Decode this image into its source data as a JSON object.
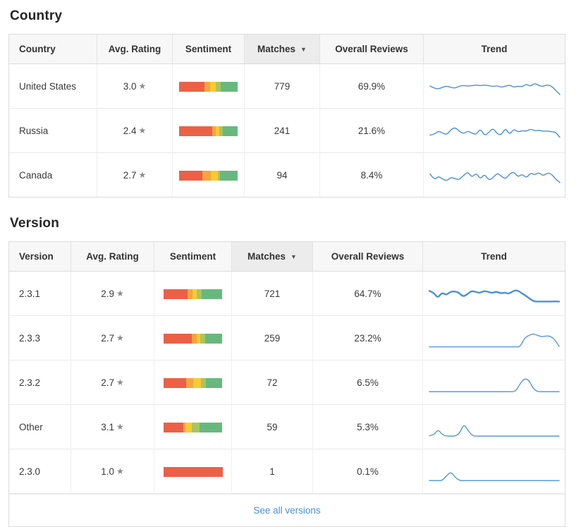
{
  "colors": {
    "sentiment_palette": [
      "#EB6146",
      "#F4A63B",
      "#F8CA33",
      "#A5C663",
      "#68B87E"
    ],
    "trend_line": "#4A90D9",
    "link": "#4A90D9",
    "header_bg": "#F7F7F7",
    "sorted_header_bg": "#ECECEC"
  },
  "country": {
    "title": "Country",
    "columns": [
      "Country",
      "Avg. Rating",
      "Sentiment",
      "Matches",
      "Overall Reviews",
      "Trend"
    ],
    "sorted_column": "Matches",
    "sort_direction": "desc",
    "sort_arrow_glyph": "▼",
    "star_glyph": "★",
    "rows": [
      {
        "name": "United States",
        "rating": "3.0",
        "sentiment": [
          44,
          9,
          10,
          8,
          29
        ],
        "matches": "779",
        "overall": "69.9%",
        "trend_weight": 1.4,
        "trend": [
          50,
          40,
          36,
          45,
          50,
          44,
          40,
          50,
          53,
          50,
          52,
          55,
          52,
          55,
          52,
          48,
          52,
          44,
          50,
          55,
          44,
          50,
          46,
          60,
          48,
          64,
          52,
          48,
          56,
          50,
          30,
          10
        ]
      },
      {
        "name": "Russia",
        "rating": "2.4",
        "sentiment": [
          56,
          6,
          6,
          6,
          26
        ],
        "matches": "241",
        "overall": "21.6%",
        "trend_weight": 1.4,
        "trend": [
          28,
          32,
          48,
          38,
          30,
          55,
          65,
          45,
          35,
          48,
          38,
          30,
          60,
          25,
          40,
          62,
          35,
          28,
          62,
          30,
          58,
          42,
          50,
          46,
          58,
          48,
          52,
          46,
          48,
          44,
          42,
          18
        ]
      },
      {
        "name": "Canada",
        "rating": "2.7",
        "sentiment": [
          40,
          14,
          12,
          4,
          30
        ],
        "matches": "94",
        "overall": "8.4%",
        "trend_weight": 1.4,
        "trend": [
          55,
          25,
          45,
          30,
          22,
          40,
          32,
          28,
          48,
          65,
          38,
          60,
          30,
          55,
          25,
          35,
          60,
          45,
          30,
          55,
          65,
          40,
          55,
          35,
          60,
          50,
          62,
          45,
          60,
          55,
          30,
          15
        ]
      }
    ]
  },
  "version": {
    "title": "Version",
    "columns": [
      "Version",
      "Avg. Rating",
      "Sentiment",
      "Matches",
      "Overall Reviews",
      "Trend"
    ],
    "sorted_column": "Matches",
    "sort_direction": "desc",
    "sort_arrow_glyph": "▼",
    "star_glyph": "★",
    "rows": [
      {
        "name": "2.3.1",
        "rating": "2.9",
        "sentiment": [
          41,
          8,
          8,
          8,
          35
        ],
        "matches": "721",
        "overall": "64.7%",
        "trend_weight": 2.4,
        "trend": [
          62,
          55,
          28,
          55,
          42,
          58,
          60,
          55,
          35,
          45,
          62,
          58,
          52,
          62,
          58,
          52,
          60,
          50,
          55,
          48,
          62,
          66,
          52,
          40,
          25,
          12,
          12,
          12,
          12,
          12,
          13,
          12
        ]
      },
      {
        "name": "2.3.3",
        "rating": "2.7",
        "sentiment": [
          48,
          9,
          6,
          8,
          29
        ],
        "matches": "259",
        "overall": "23.2%",
        "trend_weight": 1.3,
        "trend": [
          8,
          8,
          8,
          8,
          8,
          8,
          8,
          8,
          8,
          8,
          8,
          8,
          8,
          8,
          8,
          8,
          8,
          8,
          8,
          8,
          8,
          8,
          50,
          62,
          70,
          62,
          55,
          60,
          58,
          42,
          10
        ]
      },
      {
        "name": "2.3.2",
        "rating": "2.7",
        "sentiment": [
          39,
          12,
          13,
          8,
          28
        ],
        "matches": "72",
        "overall": "6.5%",
        "trend_weight": 1.3,
        "trend": [
          6,
          6,
          6,
          6,
          6,
          6,
          6,
          6,
          6,
          6,
          6,
          6,
          6,
          6,
          6,
          6,
          6,
          6,
          6,
          6,
          8,
          45,
          68,
          62,
          20,
          6,
          6,
          6,
          6,
          6,
          6
        ]
      },
      {
        "name": "Other",
        "rating": "3.1",
        "sentiment": [
          34,
          3,
          11,
          13,
          39
        ],
        "matches": "59",
        "overall": "5.3%",
        "trend_weight": 1.3,
        "trend": [
          8,
          10,
          38,
          12,
          6,
          6,
          6,
          20,
          65,
          30,
          7,
          6,
          6,
          6,
          6,
          6,
          6,
          6,
          6,
          6,
          6,
          6,
          6,
          6,
          6,
          6,
          6,
          6,
          6,
          6,
          6
        ]
      },
      {
        "name": "2.3.0",
        "rating": "1.0",
        "sentiment": [
          100,
          0,
          0,
          0,
          0
        ],
        "matches": "1",
        "overall": "0.1%",
        "trend_weight": 1.3,
        "trend": [
          6,
          6,
          6,
          6,
          30,
          48,
          20,
          6,
          6,
          6,
          6,
          6,
          6,
          6,
          6,
          6,
          6,
          6,
          6,
          6,
          6,
          6,
          6,
          6,
          6,
          6,
          6,
          6,
          6,
          6,
          6
        ]
      }
    ],
    "footer": {
      "see_all_label": "See all versions"
    }
  }
}
